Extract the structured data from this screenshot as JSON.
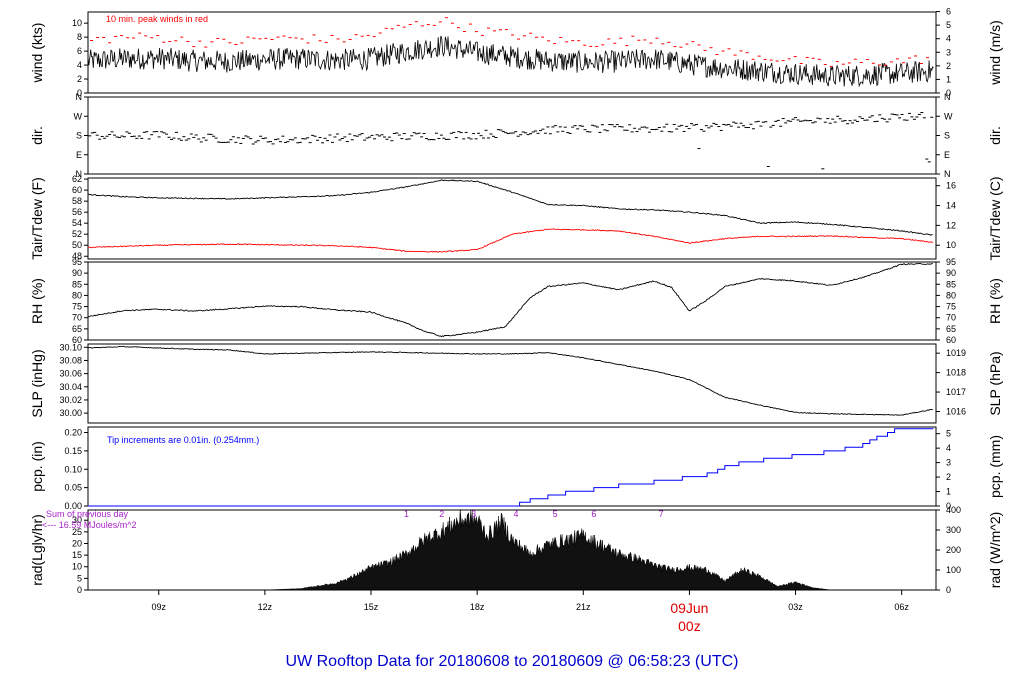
{
  "title": "UW Rooftop Data for 20180608  to  20180609 @ 06:58:23  (UTC)",
  "colors": {
    "title": "#0000cc",
    "peak": "#ff0000",
    "dew": "#ff0000",
    "precip": "#0000ff",
    "note": "#aa22cc",
    "date": "#dd0000"
  },
  "time_axis": {
    "labels": [
      "09z",
      "12z",
      "15z",
      "18z",
      "21z",
      "00z",
      "03z",
      "06z"
    ],
    "hours": [
      9,
      12,
      15,
      18,
      21,
      24,
      27,
      30
    ],
    "date_label": "09Jun",
    "range_hours": [
      7.0,
      30.97
    ]
  },
  "chart_data": [
    {
      "type": "line",
      "name": "wind",
      "ylabel": "wind (kts)",
      "ylabel_right": "wind (m/s)",
      "ylim": [
        0,
        11.6
      ],
      "yticks": [
        0,
        2,
        4,
        6,
        8,
        10
      ],
      "right_ticks": [
        0,
        1,
        2,
        3,
        4,
        5,
        6
      ],
      "right_factor": 1.944,
      "annotation": "10 min. peak winds in red",
      "x": [
        7,
        8,
        9,
        10,
        11,
        12,
        13,
        14,
        15,
        16,
        17,
        18,
        19,
        20,
        21,
        22,
        23,
        24,
        25,
        26,
        27,
        28,
        29,
        30,
        30.9
      ],
      "series": [
        {
          "name": "wind",
          "values": [
            4.6,
            4.9,
            5.0,
            4.6,
            4.5,
            4.8,
            4.9,
            4.7,
            4.9,
            6.0,
            6.8,
            5.8,
            5.2,
            4.6,
            4.4,
            4.5,
            4.9,
            4.1,
            3.6,
            3.2,
            2.8,
            2.4,
            2.6,
            2.8,
            3.2
          ]
        },
        {
          "name": "peak",
          "values": [
            7.5,
            8.0,
            8.0,
            7.3,
            7.2,
            7.8,
            7.8,
            7.6,
            8.2,
            9.6,
            10.4,
            9.0,
            8.4,
            7.6,
            7.2,
            7.3,
            7.9,
            6.8,
            5.9,
            5.3,
            4.6,
            4.1,
            4.4,
            4.6,
            5.0
          ]
        }
      ]
    },
    {
      "type": "scatter",
      "name": "dir",
      "ylabel": "dir.",
      "ylabel_right": "dir.",
      "ylim": [
        0,
        360
      ],
      "yticklabels": [
        "N",
        "E",
        "S",
        "W",
        "N"
      ],
      "ytickvals": [
        0,
        90,
        180,
        270,
        360
      ],
      "x": [
        7,
        8,
        9,
        10,
        11,
        12,
        13,
        14,
        15,
        16,
        17,
        18,
        19,
        20,
        21,
        22,
        23,
        24,
        25,
        26,
        27,
        28,
        29,
        30,
        30.9
      ],
      "values": [
        180,
        178,
        182,
        170,
        164,
        158,
        162,
        168,
        172,
        176,
        180,
        184,
        194,
        206,
        210,
        212,
        212,
        215,
        224,
        232,
        244,
        252,
        258,
        268,
        275
      ]
    },
    {
      "type": "line",
      "name": "temp",
      "ylabel": "Tair/Tdew (F)",
      "ylabel_right": "Tair/Tdew (C)",
      "ylim": [
        47.5,
        62.2
      ],
      "yticks": [
        48,
        50,
        52,
        54,
        56,
        58,
        60,
        62
      ],
      "right_ticks": [
        10,
        12,
        14,
        16
      ],
      "x": [
        7,
        8,
        9,
        10,
        11,
        12,
        13,
        14,
        15,
        16,
        17,
        18,
        19,
        20,
        21,
        22,
        23,
        24,
        25,
        26,
        27,
        28,
        29,
        30,
        30.9
      ],
      "series": [
        {
          "name": "Tair",
          "values": [
            59.2,
            58.8,
            58.6,
            58.5,
            58.4,
            58.6,
            58.8,
            59.0,
            59.6,
            60.6,
            61.8,
            61.6,
            59.6,
            57.4,
            57.2,
            56.6,
            56.4,
            56.0,
            55.4,
            54.0,
            54.2,
            53.8,
            53.2,
            52.6,
            51.8
          ]
        },
        {
          "name": "Tdew",
          "values": [
            49.6,
            49.8,
            50.0,
            50.1,
            50.2,
            50.1,
            50.0,
            49.9,
            49.6,
            48.9,
            48.8,
            49.2,
            52.0,
            52.9,
            52.8,
            52.6,
            51.6,
            50.4,
            51.2,
            51.6,
            51.6,
            51.7,
            51.4,
            51.2,
            50.5
          ]
        }
      ]
    },
    {
      "type": "line",
      "name": "rh",
      "ylabel": "RH (%)",
      "ylabel_right": "RH (%)",
      "ylim": [
        60,
        95
      ],
      "yticks": [
        60,
        65,
        70,
        75,
        80,
        85,
        90,
        95
      ],
      "right_ticks": [
        60,
        65,
        70,
        75,
        80,
        85,
        90,
        95
      ],
      "x": [
        7,
        8,
        9,
        10,
        11,
        12,
        13,
        14,
        15,
        16,
        16.5,
        17,
        18,
        18.8,
        19.5,
        20,
        21,
        22,
        23,
        23.5,
        24,
        24.5,
        25,
        26,
        27,
        28,
        29,
        30,
        30.9
      ],
      "values": [
        70.5,
        73.2,
        73.8,
        73.0,
        74.0,
        75.2,
        75.0,
        73.5,
        72.5,
        67.5,
        64.0,
        61.6,
        63.5,
        66.0,
        79.0,
        84.0,
        85.6,
        82.5,
        86.5,
        83.5,
        73.0,
        78.0,
        84.0,
        87.5,
        86.5,
        84.5,
        88.5,
        94.0,
        94.2
      ]
    },
    {
      "type": "line",
      "name": "slp",
      "ylabel": "SLP (inHg)",
      "ylabel_right": "SLP (hPa)",
      "ylim": [
        29.985,
        30.105
      ],
      "yticks": [
        30.0,
        30.02,
        30.04,
        30.06,
        30.08,
        30.1
      ],
      "right_ticks": [
        1016,
        1017,
        1018,
        1019
      ],
      "x": [
        7,
        8,
        9,
        10,
        11,
        12,
        13,
        14,
        15,
        16,
        17,
        18,
        19,
        20,
        21,
        22,
        23,
        24,
        25,
        26,
        27,
        28,
        29,
        30,
        30.9
      ],
      "values": [
        30.099,
        30.101,
        30.099,
        30.097,
        30.096,
        30.09,
        30.091,
        30.092,
        30.093,
        30.092,
        30.091,
        30.09,
        30.09,
        30.092,
        30.084,
        30.074,
        30.064,
        30.051,
        30.024,
        30.012,
        30.001,
        29.999,
        29.998,
        29.997,
        30.006
      ]
    },
    {
      "type": "line",
      "name": "precip",
      "ylabel": "pcp. (in)",
      "ylabel_right": "pcp. (mm)",
      "ylim": [
        0,
        0.215
      ],
      "yticks": [
        0.0,
        0.05,
        0.1,
        0.15,
        0.2
      ],
      "right_ticks": [
        0,
        1,
        2,
        3,
        4,
        5
      ],
      "annotation": "Tip increments are 0.01in. (0.254mm.)",
      "steps_x": [
        7,
        19.2,
        19.5,
        20.0,
        20.5,
        21.3,
        22.0,
        23.0,
        23.8,
        24.5,
        24.8,
        25.0,
        25.4,
        26.1,
        26.9,
        27.8,
        28.4,
        28.9,
        29.1,
        29.3,
        29.6,
        29.8,
        30.3,
        30.9
      ],
      "steps_y": [
        0,
        0.01,
        0.02,
        0.03,
        0.04,
        0.05,
        0.06,
        0.07,
        0.08,
        0.09,
        0.1,
        0.11,
        0.12,
        0.13,
        0.14,
        0.15,
        0.16,
        0.17,
        0.18,
        0.19,
        0.2,
        0.21,
        0.21,
        0.21
      ]
    },
    {
      "type": "area",
      "name": "rad",
      "ylabel": "rad(Lgly/hr)",
      "ylabel_right": "rad (W/m^2)",
      "ylim": [
        0,
        34.4
      ],
      "yticks": [
        0,
        5,
        10,
        15,
        20,
        25,
        30
      ],
      "right_ticks": [
        0,
        100,
        200,
        300,
        400
      ],
      "right_factor": 0.086,
      "note_line1": "Sum of previous day",
      "note_line2": "<--- 16.59 MJoules/m^2",
      "uv_labels": [
        "1",
        "2",
        "3",
        "4",
        "5",
        "6",
        "7"
      ],
      "uv_hours": [
        16.0,
        17.0,
        17.9,
        19.1,
        20.2,
        21.3,
        23.2
      ],
      "x": [
        7,
        12,
        13,
        14,
        14.5,
        15,
        15.5,
        16,
        16.5,
        17,
        17.5,
        18,
        18.3,
        18.7,
        19,
        19.5,
        20,
        20.5,
        21,
        21.5,
        22,
        22.5,
        23,
        23.5,
        24,
        24.5,
        25,
        25.5,
        26,
        26.5,
        27,
        27.5,
        28,
        30.9
      ],
      "values": [
        0,
        0,
        0.6,
        3,
        6,
        10,
        12,
        16,
        22,
        26,
        31,
        31,
        24,
        30,
        22,
        16,
        20,
        22,
        24,
        20,
        16,
        14,
        11,
        9,
        10,
        9,
        4,
        9,
        6,
        1.6,
        3.5,
        1,
        0,
        0
      ]
    }
  ]
}
